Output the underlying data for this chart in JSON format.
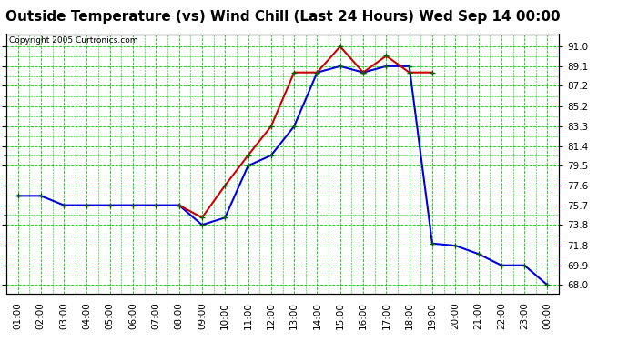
{
  "title": "Outside Temperature (vs) Wind Chill (Last 24 Hours) Wed Sep 14 00:00",
  "copyright": "Copyright 2005 Curtronics.com",
  "background_color": "#ffffff",
  "plot_bg_color": "#ffffff",
  "grid_color": "#00cc00",
  "x_labels": [
    "01:00",
    "02:00",
    "03:00",
    "04:00",
    "05:00",
    "06:00",
    "07:00",
    "08:00",
    "09:00",
    "10:00",
    "11:00",
    "12:00",
    "13:00",
    "14:00",
    "15:00",
    "16:00",
    "17:00",
    "18:00",
    "19:00",
    "20:00",
    "21:00",
    "22:00",
    "23:00",
    "00:00"
  ],
  "y_ticks": [
    68.0,
    69.9,
    71.8,
    73.8,
    75.7,
    77.6,
    79.5,
    81.4,
    83.3,
    85.2,
    87.2,
    89.1,
    91.0
  ],
  "ylim": [
    67.2,
    92.2
  ],
  "temp_blue": [
    76.6,
    76.6,
    75.7,
    75.7,
    75.7,
    75.7,
    75.7,
    75.7,
    73.8,
    74.5,
    79.5,
    80.5,
    83.3,
    88.5,
    89.1,
    88.5,
    89.1,
    89.1,
    72.0,
    71.8,
    71.0,
    69.9,
    69.9,
    68.0
  ],
  "wind_chill_red_x": [
    7,
    8,
    9,
    10,
    11,
    12,
    13,
    14,
    15,
    16,
    17,
    18
  ],
  "wind_chill_red_y": [
    75.7,
    74.5,
    77.6,
    80.5,
    83.3,
    88.5,
    88.5,
    91.0,
    88.5,
    90.1,
    88.5,
    88.5
  ],
  "line_color_blue": "#0000dd",
  "line_color_red": "#cc0000",
  "marker_color": "#006600",
  "marker_size": 3,
  "title_fontsize": 11,
  "tick_fontsize": 7.5
}
